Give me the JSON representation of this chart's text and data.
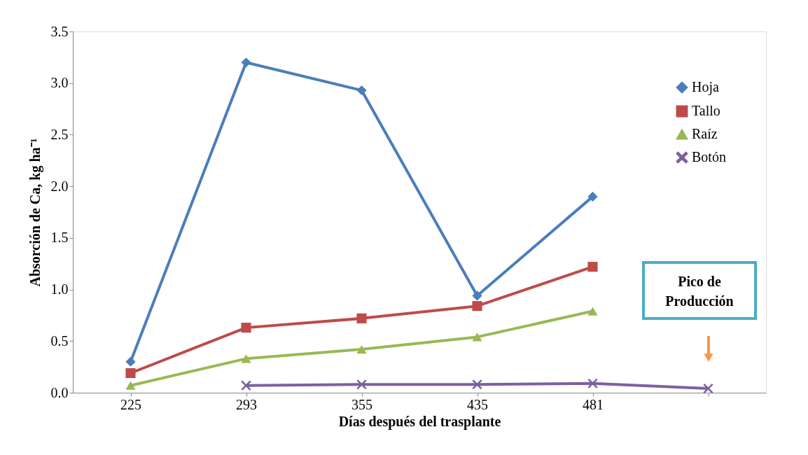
{
  "chart_data": {
    "type": "line",
    "xlabel": "Días después del trasplante",
    "ylabel": "Absorción de Ca, kg ha⁻¹",
    "categories": [
      "225",
      "293",
      "355",
      "435",
      "481",
      null
    ],
    "series": [
      {
        "name": "Hoja",
        "color": "#4a7ebb",
        "marker": "diamond",
        "values": [
          0.3,
          3.2,
          2.93,
          0.94,
          1.9,
          null
        ]
      },
      {
        "name": "Tallo",
        "color": "#be4b48",
        "marker": "square",
        "values": [
          0.19,
          0.63,
          0.72,
          0.84,
          1.22,
          null
        ]
      },
      {
        "name": "Raíz",
        "color": "#98b954",
        "marker": "triangle",
        "values": [
          0.07,
          0.33,
          0.42,
          0.54,
          0.79,
          null
        ]
      },
      {
        "name": "Botón",
        "color": "#7d60a0",
        "marker": "cross",
        "values": [
          null,
          0.07,
          0.08,
          0.08,
          0.09,
          0.04
        ]
      }
    ],
    "ylim": [
      0,
      3.5
    ],
    "yticks": [
      {
        "value": 0,
        "label": "0.0"
      },
      {
        "value": 0.5,
        "label": "0.5"
      },
      {
        "value": 1,
        "label": "1.0"
      },
      {
        "value": 1.5,
        "label": "1.5"
      },
      {
        "value": 2,
        "label": "2.0"
      },
      {
        "value": 2.5,
        "label": "2.5"
      },
      {
        "value": 3,
        "label": "3.0"
      },
      {
        "value": 3.5,
        "label": "3.5"
      }
    ],
    "grid": false,
    "legend": "top right",
    "line_style": "solid",
    "annotations": [
      "Pico de Producción"
    ]
  }
}
